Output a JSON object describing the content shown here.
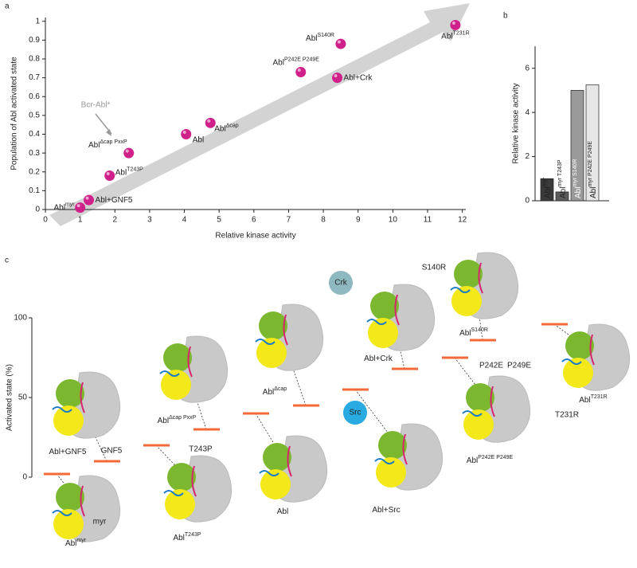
{
  "chart_data": [
    {
      "type": "scatter",
      "panel_label": "a",
      "x_label": "Relative kinase activity",
      "y_label": "Population of Abl activated state",
      "annotation": "Bcr-Abl*",
      "color": "#d0218a",
      "xlim": [
        0,
        12.1
      ],
      "ylim": [
        0,
        1.02
      ],
      "xticks": [
        0,
        1,
        2,
        3,
        4,
        5,
        6,
        7,
        8,
        9,
        10,
        11,
        12
      ],
      "yticks": [
        0,
        0.1,
        0.2,
        0.3,
        0.4,
        0.5,
        0.6,
        0.7,
        0.8,
        0.9,
        1
      ],
      "labels": [
        {
          "base": "Abl",
          "sup": "myr"
        },
        {
          "base": "Abl+GNF5"
        },
        {
          "base": "Abl",
          "sup": "T243P"
        },
        {
          "base": "Abl",
          "sup": "Δcap PxxP"
        },
        {
          "base": "Abl"
        },
        {
          "base": "Abl",
          "sup": "Δcap"
        },
        {
          "base": "Abl",
          "sup": "P242E P249E"
        },
        {
          "base": "Abl+Crk"
        },
        {
          "base": "Abl",
          "sup": "S140R"
        },
        {
          "base": "Abl",
          "sup": "T231R"
        }
      ],
      "x": [
        1.0,
        1.25,
        1.85,
        2.4,
        4.05,
        4.75,
        7.35,
        8.4,
        8.5,
        11.8
      ],
      "values": [
        0.01,
        0.05,
        0.18,
        0.3,
        0.4,
        0.46,
        0.73,
        0.7,
        0.88,
        0.98
      ]
    },
    {
      "type": "bar",
      "panel_label": "b",
      "y_label": "Relative kinase activity",
      "ylim": [
        0,
        7
      ],
      "yticks": [
        0,
        2,
        4,
        6
      ],
      "categories": [
        {
          "base": "Abl",
          "sup": "myr"
        },
        {
          "base": "Abl",
          "sup": "myr T243P"
        },
        {
          "base": "Abl",
          "sup": "myr S140R"
        },
        {
          "base": "Abl",
          "sup": "myr P242E P249E"
        }
      ],
      "values": [
        1.0,
        0.4,
        5.0,
        5.25
      ],
      "colors": [
        "#3a3a3a",
        "#5c5c5c",
        "#9a9a9a",
        "#e6e6e6"
      ]
    },
    {
      "type": "level",
      "panel_label": "c",
      "y_label": "Activated state (%)",
      "ylim": [
        0,
        100
      ],
      "yticks": [
        0,
        50,
        100
      ],
      "color": "#f26a3a",
      "categories": [
        {
          "base": "Abl",
          "sup": "myr"
        },
        {
          "base": "Abl+GNF5"
        },
        {
          "base": "Abl",
          "sup": "T243P"
        },
        {
          "base": "Abl",
          "sup": "Δcap PxxP"
        },
        {
          "base": "Abl"
        },
        {
          "base": "Abl",
          "sup": "Δcap"
        },
        {
          "base": "Abl+Src"
        },
        {
          "base": "Abl+Crk"
        },
        {
          "base": "Abl",
          "sup": "P242E P249E"
        },
        {
          "base": "Abl",
          "sup": "S140R"
        },
        {
          "base": "Abl",
          "sup": "T231R"
        }
      ],
      "values": [
        2,
        10,
        20,
        30,
        40,
        45,
        55,
        68,
        75,
        86,
        96
      ],
      "annotations": [
        "Crk",
        "Src",
        "GNF5",
        "myr",
        "S140R",
        "T243P",
        "P242E",
        "P249E",
        "T231R"
      ]
    }
  ]
}
